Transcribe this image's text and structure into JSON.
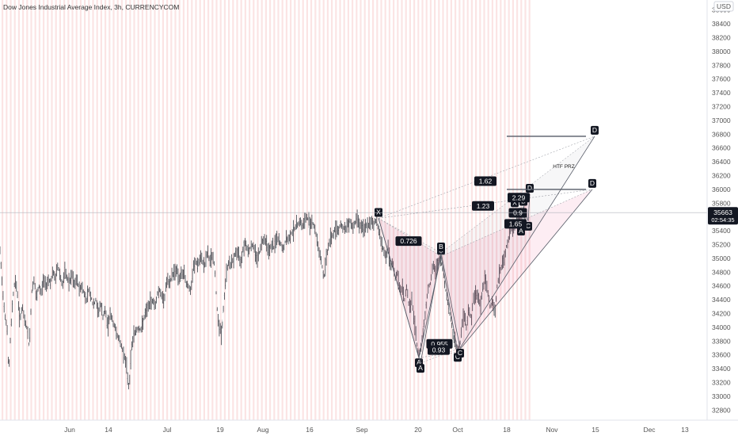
{
  "header": {
    "title": "Dow Jones Industrial Average Index, 3h, CURRENCYCOM",
    "currency": "USD"
  },
  "price_tag": {
    "value": "35663",
    "countdown": "02:54:35"
  },
  "chart_data": {
    "type": "candlestick",
    "title": "Dow Jones Industrial Average Index, 3h, CURRENCYCOM",
    "y_ticks": [
      32800,
      33000,
      33200,
      33400,
      33600,
      33800,
      34000,
      34200,
      34400,
      34600,
      34800,
      35000,
      35200,
      35400,
      35600,
      35800,
      36000,
      36200,
      36400,
      36600,
      36800,
      37000,
      37200,
      37400,
      37600,
      37800,
      38000,
      38200,
      38400,
      38600
    ],
    "ylim": [
      32700,
      38700
    ],
    "x_ticks": [
      "Jun",
      "14",
      "Jul",
      "19",
      "Aug",
      "16",
      "Sep",
      "20",
      "Oct",
      "18",
      "Nov",
      "15",
      "Dec",
      "13"
    ],
    "last_price": 35663,
    "close_path": [
      [
        0,
        35100
      ],
      [
        3,
        34600
      ],
      [
        6,
        34200
      ],
      [
        9,
        34000
      ],
      [
        11,
        33300
      ],
      [
        13,
        33800
      ],
      [
        16,
        34400
      ],
      [
        19,
        34700
      ],
      [
        22,
        34500
      ],
      [
        25,
        34100
      ],
      [
        28,
        34300
      ],
      [
        31,
        34100
      ],
      [
        34,
        34000
      ],
      [
        37,
        33700
      ],
      [
        40,
        34500
      ],
      [
        43,
        34700
      ],
      [
        46,
        34400
      ],
      [
        49,
        34600
      ],
      [
        52,
        34500
      ],
      [
        55,
        34700
      ],
      [
        58,
        34600
      ],
      [
        61,
        34700
      ],
      [
        64,
        34650
      ],
      [
        67,
        34800
      ],
      [
        70,
        34700
      ],
      [
        73,
        34900
      ],
      [
        76,
        34750
      ],
      [
        79,
        34600
      ],
      [
        82,
        34800
      ],
      [
        85,
        34700
      ],
      [
        88,
        34650
      ],
      [
        91,
        34750
      ],
      [
        94,
        34600
      ],
      [
        97,
        34700
      ],
      [
        100,
        34550
      ],
      [
        103,
        34600
      ],
      [
        106,
        34500
      ],
      [
        109,
        34400
      ],
      [
        112,
        34550
      ],
      [
        115,
        34450
      ],
      [
        118,
        34300
      ],
      [
        121,
        34400
      ],
      [
        124,
        34200
      ],
      [
        127,
        34350
      ],
      [
        130,
        34150
      ],
      [
        133,
        34250
      ],
      [
        136,
        34000
      ],
      [
        139,
        34200
      ],
      [
        142,
        34100
      ],
      [
        145,
        34000
      ],
      [
        148,
        33900
      ],
      [
        151,
        33800
      ],
      [
        154,
        33700
      ],
      [
        157,
        33600
      ],
      [
        160,
        33400
      ],
      [
        163,
        33100
      ],
      [
        166,
        33700
      ],
      [
        169,
        33900
      ],
      [
        172,
        33950
      ],
      [
        175,
        34000
      ],
      [
        178,
        33950
      ],
      [
        181,
        34100
      ],
      [
        184,
        34200
      ],
      [
        187,
        34300
      ],
      [
        190,
        34350
      ],
      [
        193,
        34400
      ],
      [
        196,
        34300
      ],
      [
        199,
        34500
      ],
      [
        202,
        34550
      ],
      [
        205,
        34400
      ],
      [
        208,
        34450
      ],
      [
        211,
        34700
      ],
      [
        214,
        34600
      ],
      [
        217,
        34750
      ],
      [
        220,
        34800
      ],
      [
        223,
        34850
      ],
      [
        226,
        34700
      ],
      [
        229,
        34750
      ],
      [
        232,
        34800
      ],
      [
        235,
        34650
      ],
      [
        238,
        34600
      ],
      [
        241,
        34500
      ],
      [
        244,
        34850
      ],
      [
        247,
        34950
      ],
      [
        250,
        34900
      ],
      [
        253,
        35000
      ],
      [
        256,
        34950
      ],
      [
        259,
        34900
      ],
      [
        262,
        35100
      ],
      [
        265,
        34950
      ],
      [
        268,
        35050
      ],
      [
        271,
        34900
      ],
      [
        274,
        34300
      ],
      [
        277,
        34000
      ],
      [
        280,
        33900
      ],
      [
        283,
        34400
      ],
      [
        286,
        34800
      ],
      [
        289,
        34950
      ],
      [
        292,
        34900
      ],
      [
        295,
        35000
      ],
      [
        298,
        35100
      ],
      [
        301,
        35050
      ],
      [
        304,
        34950
      ],
      [
        307,
        35150
      ],
      [
        310,
        35250
      ],
      [
        313,
        35100
      ],
      [
        316,
        35150
      ],
      [
        319,
        35200
      ],
      [
        322,
        35100
      ],
      [
        325,
        35000
      ],
      [
        328,
        35100
      ],
      [
        331,
        35250
      ],
      [
        334,
        35300
      ],
      [
        337,
        35200
      ],
      [
        340,
        35100
      ],
      [
        343,
        35200
      ],
      [
        346,
        35150
      ],
      [
        349,
        35300
      ],
      [
        352,
        35250
      ],
      [
        355,
        35200
      ],
      [
        358,
        35100
      ],
      [
        361,
        35300
      ],
      [
        364,
        35250
      ],
      [
        367,
        35350
      ],
      [
        370,
        35400
      ],
      [
        373,
        35450
      ],
      [
        376,
        35500
      ],
      [
        379,
        35550
      ],
      [
        382,
        35450
      ],
      [
        385,
        35550
      ],
      [
        388,
        35600
      ],
      [
        391,
        35500
      ],
      [
        394,
        35550
      ],
      [
        397,
        35450
      ],
      [
        400,
        35300
      ],
      [
        403,
        35100
      ],
      [
        406,
        34950
      ],
      [
        409,
        34700
      ],
      [
        412,
        35000
      ],
      [
        415,
        35200
      ],
      [
        418,
        35300
      ],
      [
        421,
        35350
      ],
      [
        424,
        35450
      ],
      [
        427,
        35400
      ],
      [
        430,
        35500
      ],
      [
        433,
        35450
      ],
      [
        436,
        35400
      ],
      [
        439,
        35500
      ],
      [
        442,
        35550
      ],
      [
        445,
        35450
      ],
      [
        448,
        35500
      ],
      [
        451,
        35600
      ],
      [
        454,
        35500
      ],
      [
        457,
        35450
      ],
      [
        460,
        35400
      ],
      [
        463,
        35500
      ],
      [
        466,
        35450
      ],
      [
        469,
        35550
      ],
      [
        472,
        35500
      ],
      [
        475,
        35550
      ],
      [
        478,
        35450
      ],
      [
        481,
        35250
      ],
      [
        484,
        35150
      ],
      [
        487,
        35000
      ],
      [
        490,
        35150
      ],
      [
        493,
        34850
      ],
      [
        496,
        34950
      ],
      [
        499,
        34700
      ],
      [
        502,
        34800
      ],
      [
        505,
        34500
      ],
      [
        508,
        34600
      ],
      [
        511,
        34400
      ],
      [
        514,
        34600
      ],
      [
        517,
        34250
      ],
      [
        520,
        34400
      ],
      [
        523,
        34100
      ],
      [
        526,
        33800
      ],
      [
        529,
        33550
      ],
      [
        532,
        33750
      ],
      [
        535,
        34000
      ],
      [
        538,
        34300
      ],
      [
        541,
        34600
      ],
      [
        544,
        34650
      ],
      [
        547,
        34900
      ],
      [
        550,
        34800
      ],
      [
        553,
        34950
      ],
      [
        556,
        35000
      ],
      [
        559,
        34850
      ],
      [
        562,
        34600
      ],
      [
        565,
        34400
      ],
      [
        568,
        34200
      ],
      [
        571,
        34000
      ],
      [
        574,
        33800
      ],
      [
        577,
        33700
      ],
      [
        580,
        33650
      ],
      [
        583,
        34000
      ],
      [
        586,
        34200
      ],
      [
        589,
        34000
      ],
      [
        592,
        34300
      ],
      [
        595,
        34100
      ],
      [
        598,
        34400
      ],
      [
        601,
        34500
      ],
      [
        604,
        34450
      ],
      [
        607,
        34300
      ],
      [
        610,
        34600
      ],
      [
        613,
        34700
      ],
      [
        616,
        34500
      ],
      [
        619,
        34300
      ],
      [
        622,
        34400
      ],
      [
        625,
        34200
      ],
      [
        628,
        34600
      ],
      [
        631,
        34800
      ],
      [
        634,
        34900
      ],
      [
        637,
        35000
      ],
      [
        640,
        35200
      ],
      [
        643,
        35300
      ],
      [
        646,
        35450
      ],
      [
        649,
        35400
      ],
      [
        652,
        35550
      ],
      [
        655,
        35600
      ],
      [
        658,
        35650
      ],
      [
        661,
        35620
      ],
      [
        664,
        35663
      ]
    ],
    "patterns": [
      {
        "name": "main",
        "points": [
          {
            "label": "X",
            "x": 478,
            "y": 35580
          },
          {
            "label": "A",
            "x": 529,
            "y": 33560
          },
          {
            "label": "B",
            "x": 557,
            "y": 35030
          },
          {
            "label": "C",
            "x": 578,
            "y": 33640
          },
          {
            "label": "D",
            "x": 748,
            "y": 36000
          }
        ]
      },
      {
        "name": "htf",
        "points": [
          {
            "label": "X",
            "x": 478,
            "y": 35580
          },
          {
            "label": "A",
            "x": 531,
            "y": 33480
          },
          {
            "label": "B",
            "x": 557,
            "y": 35080
          },
          {
            "label": "C",
            "x": 581,
            "y": 33700
          },
          {
            "label": "D",
            "x": 751,
            "y": 36770
          }
        ]
      },
      {
        "name": "inner",
        "points": [
          {
            "label": "X",
            "x": 650,
            "y": 35720
          },
          {
            "label": "A",
            "x": 658,
            "y": 35470
          },
          {
            "label": "B",
            "x": 661,
            "y": 35740
          },
          {
            "label": "C",
            "x": 667,
            "y": 35540
          },
          {
            "label": "D",
            "x": 669,
            "y": 35930
          }
        ]
      }
    ],
    "ratio_labels": [
      {
        "text": "1.62",
        "x": 613,
        "y": 36120
      },
      {
        "text": "1.23",
        "x": 610,
        "y": 35760
      },
      {
        "text": "0.726",
        "x": 516,
        "y": 35250
      },
      {
        "text": "0.955",
        "x": 555,
        "y": 33760
      },
      {
        "text": "0.93",
        "x": 554,
        "y": 33670
      },
      {
        "text": "2.29",
        "x": 655,
        "y": 35880
      },
      {
        "text": "0.9",
        "x": 654,
        "y": 35660
      },
      {
        "text": "1.65",
        "x": 651,
        "y": 35500
      }
    ],
    "annotations": [
      {
        "text": "HTF PRZ",
        "x": 712,
        "y": 36310
      }
    ],
    "prz_lines": [
      {
        "x1": 640,
        "x2": 740,
        "y": 36770
      },
      {
        "x1": 640,
        "x2": 740,
        "y": 36000
      }
    ]
  }
}
